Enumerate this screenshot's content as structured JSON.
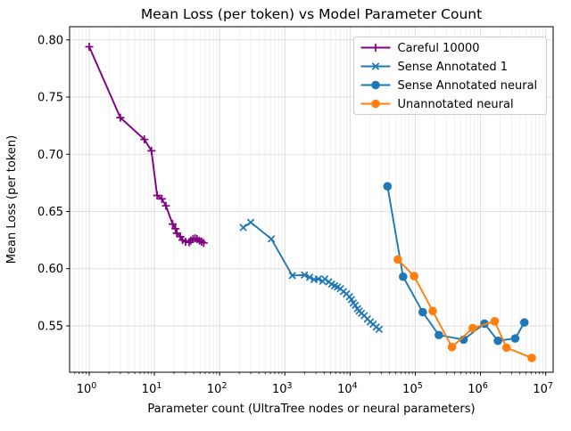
{
  "chart_data": {
    "type": "line",
    "title": "Mean Loss (per token) vs Model Parameter Count",
    "xlabel": "Parameter count (UltraTree nodes or neural parameters)",
    "ylabel": "Mean Loss (per token)",
    "x_scale": "log",
    "xlim": [
      0.5,
      13000000
    ],
    "ylim": [
      0.5095,
      0.8115
    ],
    "x_tick_exponents": [
      0,
      1,
      2,
      3,
      4,
      5,
      6,
      7
    ],
    "y_ticks": [
      0.55,
      0.6,
      0.65,
      0.7,
      0.75,
      0.8
    ],
    "grid": {
      "vertical_major": true,
      "vertical_minor": true,
      "horizontal_major": true
    },
    "legend_position": "upper right",
    "colors": {
      "purple": "#800080",
      "blue": "#1f77b4",
      "orange": "#ff7f0e"
    },
    "series": [
      {
        "name": "Careful 10000",
        "color": "#800080",
        "marker": "plus",
        "x": [
          1,
          3,
          7,
          9,
          11,
          13,
          15,
          19,
          21,
          22,
          25,
          27,
          30,
          34,
          36,
          39,
          42,
          45,
          49,
          53,
          57
        ],
        "y": [
          0.794,
          0.732,
          0.713,
          0.703,
          0.664,
          0.661,
          0.655,
          0.639,
          0.635,
          0.631,
          0.628,
          0.625,
          0.6235,
          0.623,
          0.6245,
          0.626,
          0.6265,
          0.626,
          0.6245,
          0.6235,
          0.6225
        ]
      },
      {
        "name": "Sense Annotated 1",
        "color": "#1f77b4",
        "marker": "x",
        "x": [
          230,
          300,
          620,
          1300,
          2000,
          2400,
          2800,
          3250,
          3800,
          4100,
          4700,
          5200,
          5800,
          6400,
          7100,
          7900,
          8800,
          9800,
          10500,
          11200,
          12000,
          13000,
          13800,
          14900,
          16500,
          18400,
          20400,
          22600,
          25200,
          27900
        ],
        "y": [
          0.636,
          0.6405,
          0.626,
          0.594,
          0.5945,
          0.5925,
          0.5905,
          0.591,
          0.589,
          0.591,
          0.5885,
          0.5865,
          0.585,
          0.584,
          0.5825,
          0.58,
          0.578,
          0.5755,
          0.573,
          0.57,
          0.568,
          0.565,
          0.563,
          0.561,
          0.559,
          0.556,
          0.5535,
          0.5515,
          0.549,
          0.547
        ]
      },
      {
        "name": "Sense Annotated neural",
        "color": "#1f77b4",
        "marker": "circle",
        "x": [
          37500,
          65000,
          130000,
          230000,
          550000,
          1150000,
          1850000,
          3400000,
          4700000
        ],
        "y": [
          0.672,
          0.593,
          0.562,
          0.542,
          0.538,
          0.552,
          0.537,
          0.539,
          0.553
        ]
      },
      {
        "name": "Unannotated neural",
        "color": "#ff7f0e",
        "marker": "circle",
        "x": [
          54000,
          96000,
          185000,
          365000,
          760000,
          1650000,
          2500000,
          6100000
        ],
        "y": [
          0.608,
          0.5935,
          0.563,
          0.5315,
          0.548,
          0.554,
          0.531,
          0.522
        ]
      }
    ]
  }
}
